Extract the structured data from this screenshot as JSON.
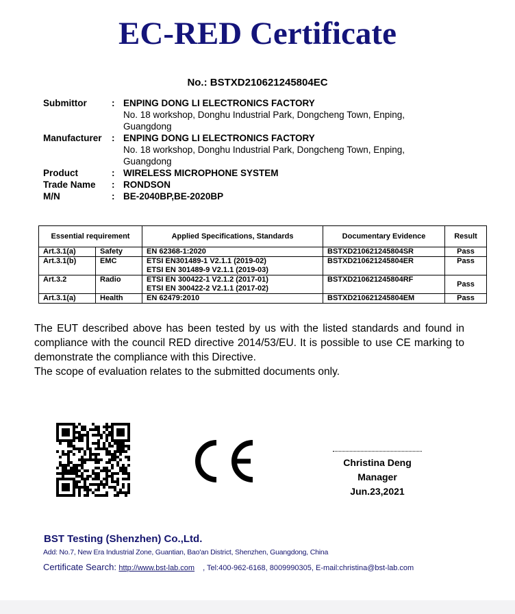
{
  "title": "EC-RED Certificate",
  "cert_no": "No.: BSTXD210621245804EC",
  "info": [
    {
      "label": "Submittor",
      "value": "ENPING DONG LI ELECTRONICS FACTORY",
      "extra": "No. 18 workshop, Donghu Industrial Park, Dongcheng Town, Enping, Guangdong"
    },
    {
      "label": "Manufacturer",
      "value": "ENPING DONG LI ELECTRONICS FACTORY",
      "extra": "No. 18 workshop, Donghu Industrial Park, Dongcheng Town, Enping, Guangdong"
    },
    {
      "label": "Product",
      "value": "WIRELESS MICROPHONE SYSTEM"
    },
    {
      "label": "Trade Name",
      "value": "RONDSON"
    },
    {
      "label": "M/N",
      "value": "BE-2040BP,BE-2020BP"
    }
  ],
  "colon": ":",
  "table": {
    "headers": [
      "Essential requirement",
      "Applied Specifications, Standards",
      "Documentary Evidence",
      "Result"
    ],
    "rows": [
      {
        "art": "Art.3.1(a)",
        "name": "Safety",
        "spec1": "EN 62368-1:2020",
        "spec2": "",
        "evidence": "BSTXD210621245804SR",
        "result": "Pass"
      },
      {
        "art": "Art.3.1(b)",
        "name": "EMC",
        "spec1": "ETSI EN301489-1 V2.1.1 (2019-02)",
        "spec2": "ETSI EN 301489-9 V2.1.1 (2019-03)",
        "evidence": "BSTXD210621245804ER",
        "result": "Pass"
      },
      {
        "art": "Art.3.2",
        "name": "Radio",
        "spec1": "ETSI EN 300422-1 V2.1.2 (2017-01)",
        "spec2": "ETSI EN 300422-2 V2.1.1 (2017-02)",
        "evidence": "BSTXD210621245804RF",
        "result": "Pass"
      },
      {
        "art": "Art.3.1(a)",
        "name": "Health",
        "spec1": "EN 62479:2010",
        "spec2": "",
        "evidence": "BSTXD210621245804EM",
        "result": "Pass"
      }
    ]
  },
  "statement": "The EUT described above has been tested by us with the listed standards and found in compliance with the council RED directive 2014/53/EU. It is possible to use CE marking to demonstrate the compliance with this Directive.",
  "scope": "The scope of evaluation relates to the submitted documents only.",
  "ce_mark": "CE",
  "signatory": {
    "name": "Christina Deng",
    "role": "Manager",
    "date": "Jun.23,2021"
  },
  "footer": {
    "company": "BST Testing (Shenzhen) Co.,Ltd.",
    "address": "Add: No.7, New Era Industrial Zone, Guantian, Bao'an District, Shenzhen, Guangdong, China",
    "search_label": "Certificate Search:",
    "url": "http://www.bst-lab.com",
    "contact": ", Tel:400-962-6168, 8009990305, E-mail:christina@bst-lab.com"
  },
  "colors": {
    "title": "#14147a",
    "footer": "#14146e"
  }
}
